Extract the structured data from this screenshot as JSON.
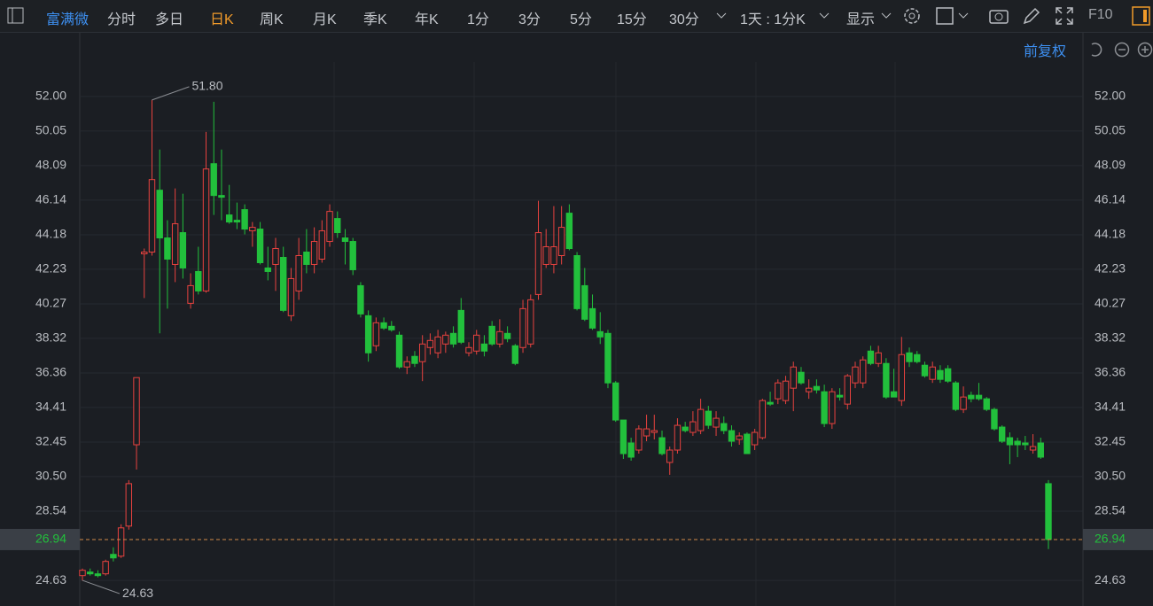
{
  "toolbar": {
    "stock": "富满微",
    "periods": [
      "分时",
      "多日",
      "日K",
      "周K",
      "月K",
      "季K",
      "年K",
      "1分",
      "3分",
      "5分",
      "15分",
      "30分"
    ],
    "interval": "1天 : 1分K",
    "display": "显示",
    "f10": "F10",
    "adjust": "前复权"
  },
  "chart_data": {
    "type": "candlestick",
    "open": [
      24.9,
      25.1,
      25.0,
      25.0,
      26.1,
      26.0,
      27.7,
      32.3,
      43.1,
      43.2,
      46.7,
      44.0,
      42.5,
      44.3,
      40.3,
      42.1,
      41.0,
      48.2,
      46.4,
      45.3,
      45.0,
      45.6,
      44.4,
      44.5,
      42.3,
      42.5,
      42.9,
      39.6,
      41.0,
      43.2,
      42.5,
      42.8,
      43.8,
      45.1,
      44.0,
      43.8,
      41.3,
      39.6,
      37.9,
      39.2,
      39.0,
      38.5,
      36.7,
      37.3,
      37.0,
      37.8,
      37.5,
      38.0,
      38.6,
      39.9,
      37.5,
      37.6,
      38.0,
      39.0,
      38.0,
      38.6,
      37.9,
      37.8,
      38.0,
      40.8,
      42.5,
      42.5,
      43.0,
      45.4,
      43.0,
      41.3,
      40.0,
      38.7,
      38.6,
      35.8,
      33.7,
      32.4,
      32.0,
      32.8,
      33.0,
      32.7,
      31.3,
      32.0,
      33.3,
      33.0,
      33.1,
      34.2,
      33.3,
      33.5,
      33.1,
      32.6,
      32.9,
      32.3,
      32.7,
      34.7,
      34.9,
      34.8,
      35.5,
      36.4,
      35.3,
      35.6,
      35.3,
      33.5,
      35.1,
      34.6,
      35.8,
      35.8,
      37.6,
      36.9,
      36.9,
      35.3,
      34.8,
      37.5,
      37.4,
      36.8,
      36.0,
      36.5,
      36.6,
      35.8,
      34.3,
      35.1,
      35.1,
      34.9,
      34.3,
      33.3,
      32.7,
      32.5,
      32.4,
      32.0,
      32.4,
      30.1
    ],
    "high": [
      25.3,
      25.3,
      25.2,
      25.8,
      26.5,
      27.8,
      30.3,
      36.1,
      43.4,
      51.8,
      49.0,
      45.0,
      46.8,
      46.5,
      42.0,
      43.5,
      50.0,
      51.7,
      49.0,
      47.0,
      46.0,
      45.9,
      44.9,
      44.9,
      43.5,
      44.0,
      43.5,
      42.3,
      44.0,
      44.5,
      44.6,
      45.0,
      45.9,
      45.5,
      44.5,
      44.0,
      41.5,
      39.9,
      39.5,
      39.5,
      39.3,
      38.7,
      37.3,
      37.6,
      38.5,
      38.6,
      38.8,
      38.7,
      39.0,
      40.6,
      38.1,
      38.8,
      38.5,
      39.3,
      39.4,
      39.0,
      38.0,
      40.5,
      40.8,
      46.1,
      44.5,
      45.8,
      45.8,
      45.9,
      43.2,
      42.3,
      40.8,
      39.8,
      38.8,
      35.9,
      33.7,
      32.7,
      33.4,
      34.0,
      34.0,
      33.1,
      32.2,
      33.8,
      33.6,
      34.2,
      34.9,
      34.5,
      34.2,
      33.9,
      33.4,
      33.0,
      33.0,
      33.2,
      34.9,
      35.3,
      36.0,
      36.2,
      37.0,
      36.7,
      36.0,
      36.0,
      35.7,
      35.5,
      35.5,
      36.3,
      37.0,
      37.3,
      37.9,
      37.9,
      37.2,
      36.6,
      38.4,
      37.8,
      37.6,
      37.0,
      37.0,
      36.8,
      36.8,
      35.9,
      35.6,
      35.3,
      35.8,
      35.0,
      34.4,
      33.4,
      33.0,
      32.7,
      32.8,
      32.9,
      32.7,
      30.3
    ],
    "low": [
      24.63,
      24.9,
      24.8,
      24.9,
      25.7,
      25.9,
      27.5,
      30.9,
      40.6,
      43.0,
      38.6,
      40.0,
      41.5,
      41.7,
      40.0,
      40.8,
      40.9,
      45.3,
      45.0,
      44.8,
      44.5,
      44.2,
      43.5,
      42.5,
      41.6,
      41.0,
      39.8,
      39.3,
      40.5,
      42.0,
      42.0,
      42.6,
      43.5,
      44.0,
      42.5,
      41.9,
      39.5,
      37.0,
      37.6,
      38.8,
      38.7,
      36.6,
      36.3,
      36.7,
      35.9,
      37.4,
      37.2,
      37.5,
      37.8,
      38.0,
      37.3,
      37.4,
      37.3,
      37.9,
      37.8,
      38.1,
      36.8,
      37.5,
      37.8,
      40.5,
      42.3,
      42.0,
      42.5,
      43.3,
      39.9,
      39.3,
      38.8,
      38.0,
      35.5,
      33.6,
      31.5,
      31.4,
      31.8,
      32.5,
      32.6,
      31.7,
      30.6,
      31.8,
      33.0,
      32.8,
      32.9,
      33.2,
      32.8,
      32.9,
      32.2,
      32.3,
      31.8,
      32.0,
      32.6,
      34.5,
      34.6,
      34.6,
      34.2,
      35.7,
      34.9,
      35.2,
      33.3,
      33.2,
      34.8,
      34.3,
      35.5,
      35.5,
      36.8,
      36.7,
      34.9,
      35.0,
      34.5,
      36.7,
      36.9,
      36.1,
      35.8,
      35.8,
      35.8,
      34.2,
      34.1,
      34.7,
      34.8,
      34.2,
      33.1,
      32.4,
      31.2,
      31.6,
      32.0,
      31.8,
      31.5,
      26.4
    ],
    "close": [
      25.2,
      25.0,
      24.9,
      25.7,
      25.9,
      27.6,
      30.1,
      36.1,
      43.2,
      47.3,
      44.0,
      42.8,
      44.8,
      42.3,
      41.3,
      41.0,
      47.9,
      46.4,
      46.3,
      44.9,
      44.9,
      44.5,
      44.6,
      42.6,
      42.1,
      43.4,
      39.9,
      41.7,
      43.0,
      42.5,
      43.8,
      44.4,
      45.5,
      44.3,
      43.8,
      42.2,
      39.7,
      37.5,
      39.2,
      38.9,
      38.8,
      36.7,
      37.0,
      36.9,
      38.0,
      38.2,
      38.4,
      38.5,
      38.0,
      38.1,
      37.8,
      38.5,
      37.6,
      38.0,
      38.7,
      38.3,
      36.9,
      40.0,
      40.5,
      44.3,
      43.5,
      43.5,
      44.6,
      43.4,
      40.0,
      39.4,
      38.9,
      38.4,
      35.8,
      33.7,
      31.8,
      31.6,
      33.2,
      33.2,
      33.1,
      31.8,
      32.0,
      33.4,
      33.1,
      33.6,
      34.3,
      33.4,
      33.8,
      33.1,
      32.5,
      32.8,
      31.8,
      33.0,
      34.8,
      34.6,
      35.8,
      35.9,
      36.7,
      35.8,
      35.5,
      35.4,
      33.5,
      35.3,
      35.0,
      36.2,
      36.7,
      37.1,
      36.9,
      37.5,
      35.0,
      35.0,
      37.4,
      37.0,
      37.0,
      36.2,
      36.7,
      36.0,
      35.9,
      34.3,
      35.0,
      34.9,
      34.9,
      34.3,
      33.2,
      32.5,
      32.3,
      32.3,
      32.3,
      32.2,
      31.6,
      26.94
    ],
    "up_color": "#e8423f",
    "down_color": "#22c03c",
    "ylim": [
      23.18,
      53.95
    ],
    "yticks": [
      {
        "value": 52,
        "label": "52.00"
      },
      50.05,
      48.09,
      46.14,
      44.18,
      42.23,
      40.27,
      38.32,
      36.36,
      34.41,
      32.45,
      {
        "value": 30.5,
        "label": "30.50"
      },
      28.54,
      24.63
    ],
    "grid": true,
    "last_price": 26.94,
    "last_price_color": "#d08a4a",
    "annotations": [
      {
        "value": 51.8,
        "label": "51.80"
      },
      {
        "value": 24.63,
        "label": "24.63"
      }
    ]
  }
}
